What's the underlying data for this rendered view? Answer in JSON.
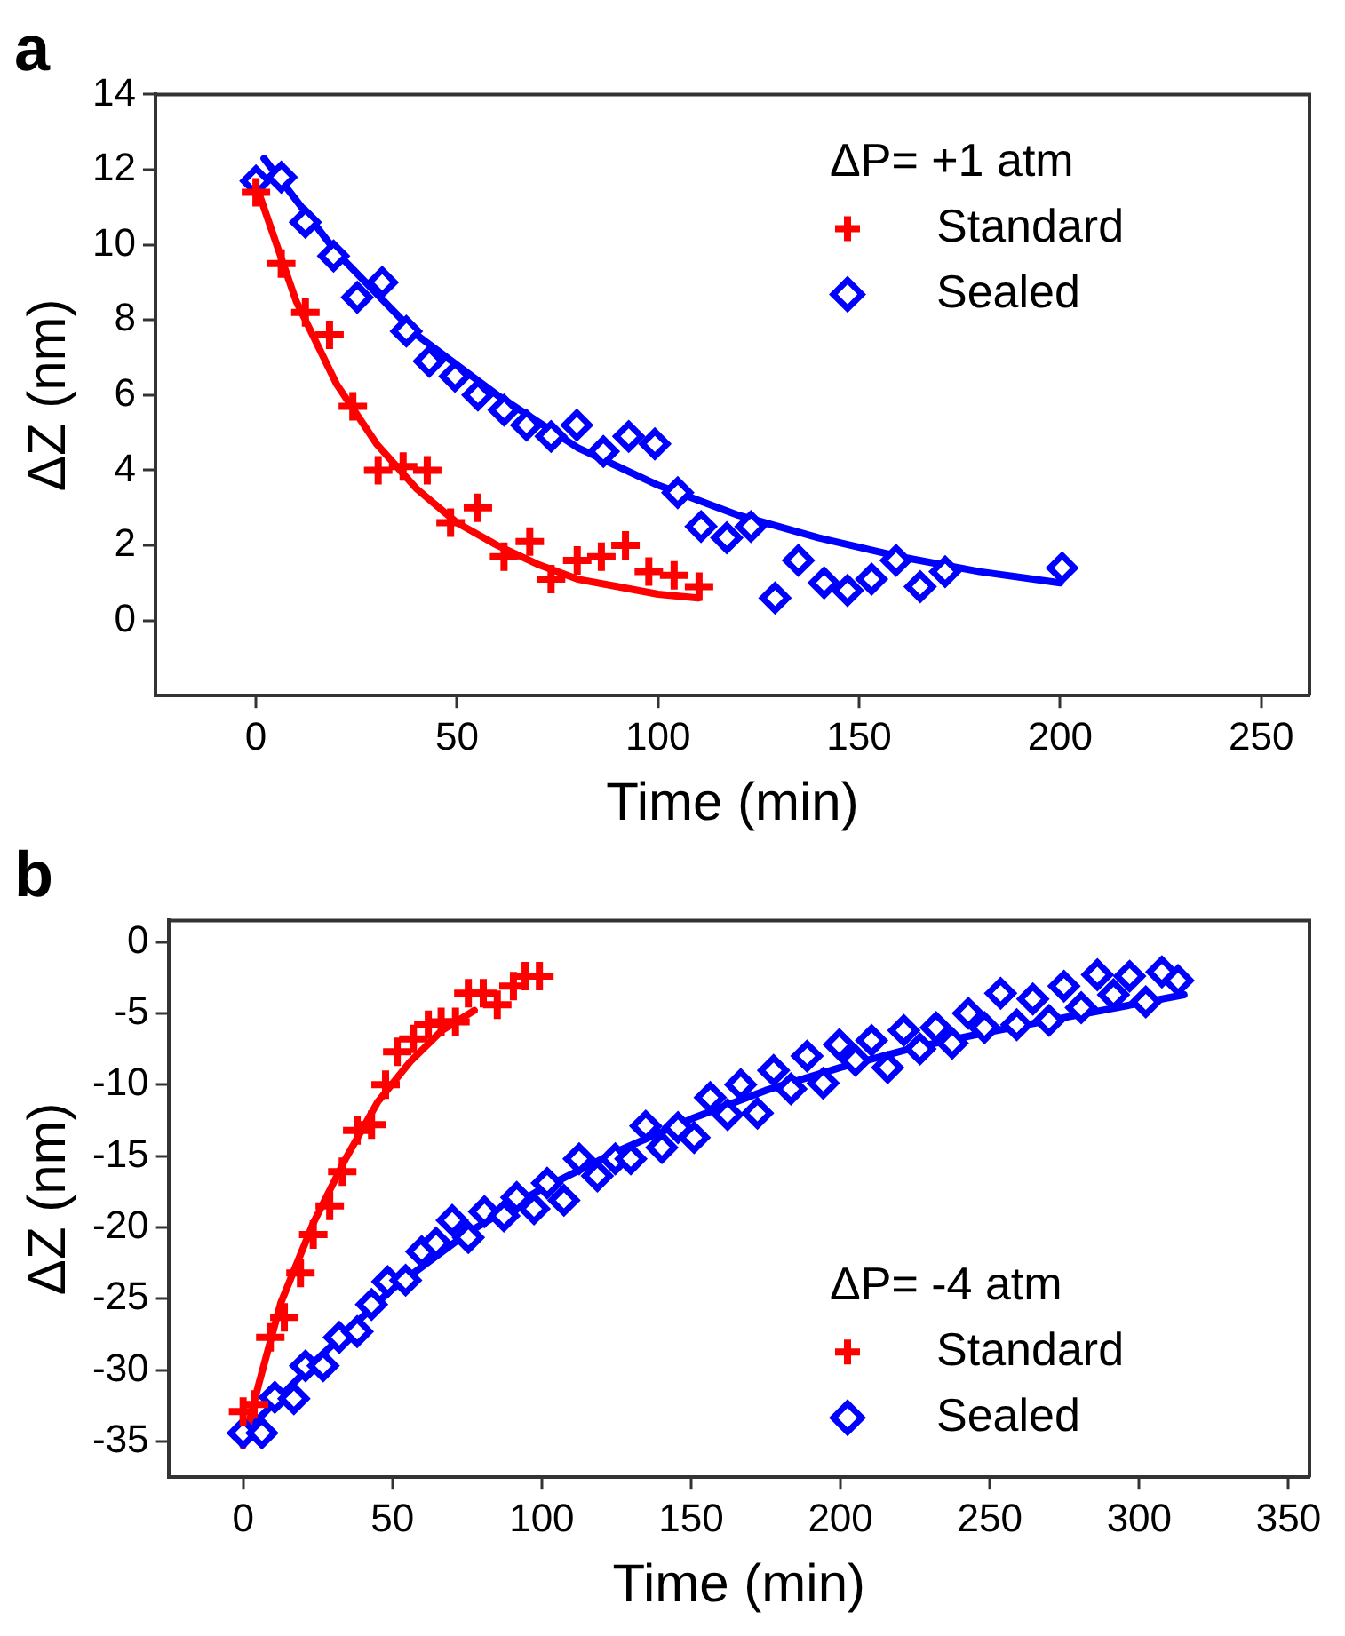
{
  "chart_data": [
    {
      "type": "scatter",
      "title": "a",
      "xlabel": "Time (min)",
      "ylabel": "ΔZ (nm)",
      "legend_title": "ΔP= +1 atm",
      "legend": "top right",
      "grid": false,
      "xlim": [
        -25,
        262
      ],
      "xticks": [
        0,
        50,
        100,
        150,
        200,
        250
      ],
      "ylim": [
        -2,
        14
      ],
      "yticks": [
        0,
        2,
        4,
        6,
        8,
        10,
        12,
        14
      ],
      "series": [
        {
          "name": "Standard",
          "type": "scatter",
          "marker": "cross",
          "color": "#ff0000",
          "x": [
            0,
            6.3,
            12.3,
            18.3,
            24.1,
            30.4,
            36.6,
            42.6,
            48.4,
            55.2,
            61.7,
            68.1,
            73.4,
            79.9,
            85.9,
            91.9,
            97.7,
            104,
            110.2
          ],
          "values": [
            11.4,
            9.5,
            8.2,
            7.6,
            5.7,
            4.0,
            4.1,
            4.0,
            2.6,
            3.0,
            1.7,
            2.1,
            1.1,
            1.6,
            1.7,
            2.0,
            1.3,
            1.2,
            0.9
          ]
        },
        {
          "name": "Sealed",
          "type": "scatter",
          "marker": "diamond",
          "color": "#0000ff",
          "x": [
            0,
            6.3,
            12.3,
            19.3,
            25.2,
            31.4,
            37.4,
            43.1,
            49.5,
            55.2,
            61.7,
            67.3,
            73.4,
            79.8,
            86.4,
            92.7,
            99.2,
            104.9,
            110.7,
            117.1,
            123.1,
            129.1,
            134.9,
            141.3,
            147.1,
            153.1,
            159.2,
            165.2,
            171.4,
            200.5
          ],
          "values": [
            11.7,
            11.8,
            10.6,
            9.7,
            8.6,
            9.0,
            7.7,
            6.9,
            6.5,
            6.0,
            5.6,
            5.2,
            4.9,
            5.2,
            4.5,
            4.9,
            4.7,
            3.4,
            2.5,
            2.2,
            2.5,
            0.6,
            1.6,
            1.0,
            0.8,
            1.1,
            1.6,
            0.9,
            1.3,
            1.4
          ]
        },
        {
          "type": "line",
          "marker": "none",
          "line_style": "solid",
          "color": "#ff0000",
          "x": [
            0,
            10,
            20,
            30,
            40,
            50,
            60,
            70,
            80,
            90,
            100,
            110
          ],
          "values": [
            11.6,
            8.5,
            6.3,
            4.7,
            3.5,
            2.6,
            2.0,
            1.5,
            1.1,
            0.9,
            0.7,
            0.6
          ]
        },
        {
          "type": "line",
          "marker": "none",
          "line_style": "solid",
          "color": "#0000ff",
          "x": [
            2,
            20,
            40,
            60,
            80,
            100,
            120,
            140,
            160,
            180,
            200
          ],
          "values": [
            12.3,
            9.8,
            7.6,
            6.0,
            4.6,
            3.6,
            2.8,
            2.2,
            1.7,
            1.3,
            1.0
          ]
        }
      ]
    },
    {
      "type": "scatter",
      "title": "b",
      "xlabel": "Time (min)",
      "ylabel": "ΔZ (nm)",
      "legend_title": "ΔP= -4 atm",
      "legend": "bottom right",
      "grid": false,
      "xlim": [
        -25,
        357
      ],
      "xticks": [
        0,
        50,
        100,
        150,
        200,
        250,
        300,
        350
      ],
      "ylim": [
        -37.5,
        1.5
      ],
      "yticks": [
        -35,
        -30,
        -25,
        -20,
        -15,
        -10,
        -5,
        0
      ],
      "series": [
        {
          "name": "Standard",
          "type": "scatter",
          "marker": "cross",
          "color": "#ff0000",
          "x": [
            0,
            3.7,
            9.1,
            13.8,
            19.2,
            23.5,
            29,
            33.2,
            38.2,
            43,
            47.7,
            51.6,
            57,
            62,
            66.3,
            71.1,
            75.4,
            80.4,
            85.1,
            90.5,
            94.4,
            99.2
          ],
          "values": [
            -32.9,
            -32.4,
            -27.7,
            -26.3,
            -23.2,
            -20.5,
            -18.5,
            -16.1,
            -13.2,
            -12.8,
            -10.0,
            -7.7,
            -6.8,
            -5.8,
            -5.6,
            -5.6,
            -3.6,
            -3.6,
            -4.4,
            -3.1,
            -2.4,
            -2.4
          ]
        },
        {
          "name": "Sealed",
          "type": "scatter",
          "marker": "diamond",
          "color": "#0000ff",
          "x": [
            0,
            6.3,
            10.6,
            17,
            20.9,
            26.8,
            32.2,
            38.2,
            43,
            48.4,
            54.4,
            59.8,
            64.6,
            70,
            75.4,
            80.8,
            87.3,
            91.6,
            97.4,
            101.8,
            107.4,
            112.5,
            118.6,
            124.6,
            129.8,
            134.8,
            140.2,
            145.6,
            151,
            156.4,
            162.2,
            166.6,
            172.2,
            177.6,
            183.4,
            188.8,
            194.2,
            199.6,
            205,
            210.4,
            215.8,
            221.2,
            226.6,
            232,
            237.4,
            242.8,
            248.2,
            253.6,
            259,
            264.4,
            269.8,
            274.8,
            280.6,
            286,
            291.4,
            296.8,
            302.2,
            307.6,
            313
          ],
          "values": [
            -34.4,
            -34.4,
            -31.9,
            -32.0,
            -29.7,
            -29.7,
            -27.7,
            -27.3,
            -25.4,
            -23.8,
            -23.7,
            -21.7,
            -21.1,
            -19.5,
            -20.7,
            -18.9,
            -19.2,
            -17.9,
            -18.7,
            -16.9,
            -18.1,
            -15.2,
            -16.4,
            -15.2,
            -15.2,
            -12.9,
            -14.4,
            -13.0,
            -13.7,
            -10.9,
            -12.1,
            -10.0,
            -12.0,
            -9.0,
            -10.3,
            -8.0,
            -9.9,
            -7.2,
            -8.3,
            -6.9,
            -8.8,
            -6.2,
            -7.5,
            -6.0,
            -7.1,
            -5.0,
            -6.0,
            -3.6,
            -5.8,
            -4.0,
            -5.5,
            -3.1,
            -4.6,
            -2.3,
            -3.7,
            -2.4,
            -4.2,
            -2.1,
            -2.7
          ]
        },
        {
          "type": "line",
          "marker": "none",
          "line_style": "solid",
          "color": "#ff0000",
          "x": [
            0,
            5.2,
            12.6,
            23.5,
            34.3,
            45.1,
            55.9,
            66.6,
            77.4
          ],
          "values": [
            -35.3,
            -31.0,
            -25.3,
            -19.7,
            -15.2,
            -11.2,
            -8.4,
            -6.2,
            -4.8
          ]
        },
        {
          "type": "line",
          "marker": "none",
          "line_style": "solid",
          "color": "#0000ff",
          "x": [
            0,
            25,
            50,
            75,
            100,
            125,
            150,
            175,
            200,
            225,
            250,
            275,
            300,
            315
          ],
          "values": [
            -34.5,
            -29.2,
            -24.3,
            -20.4,
            -17.3,
            -14.7,
            -12.4,
            -10.4,
            -8.8,
            -7.4,
            -6.3,
            -5.3,
            -4.3,
            -3.7
          ]
        }
      ]
    }
  ]
}
